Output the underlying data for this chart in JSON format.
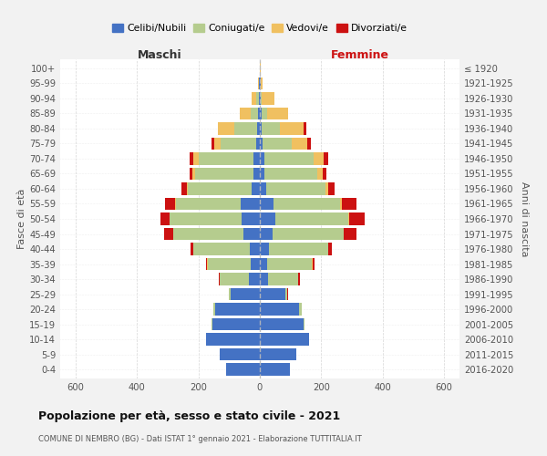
{
  "age_groups": [
    "0-4",
    "5-9",
    "10-14",
    "15-19",
    "20-24",
    "25-29",
    "30-34",
    "35-39",
    "40-44",
    "45-49",
    "50-54",
    "55-59",
    "60-64",
    "65-69",
    "70-74",
    "75-79",
    "80-84",
    "85-89",
    "90-94",
    "95-99",
    "100+"
  ],
  "birth_years": [
    "2016-2020",
    "2011-2015",
    "2006-2010",
    "2001-2005",
    "1996-2000",
    "1991-1995",
    "1986-1990",
    "1981-1985",
    "1976-1980",
    "1971-1975",
    "1966-1970",
    "1961-1965",
    "1956-1960",
    "1951-1955",
    "1946-1950",
    "1941-1945",
    "1936-1940",
    "1931-1935",
    "1926-1930",
    "1921-1925",
    "≤ 1920"
  ],
  "maschi": {
    "celibe": [
      110,
      130,
      175,
      155,
      145,
      95,
      35,
      30,
      32,
      52,
      58,
      62,
      28,
      22,
      20,
      12,
      8,
      5,
      3,
      2,
      0
    ],
    "coniugato": [
      0,
      0,
      1,
      2,
      5,
      5,
      95,
      140,
      185,
      230,
      235,
      210,
      205,
      190,
      180,
      115,
      75,
      25,
      8,
      2,
      0
    ],
    "vedovo": [
      0,
      0,
      0,
      0,
      0,
      0,
      0,
      1,
      1,
      1,
      2,
      4,
      4,
      8,
      18,
      22,
      55,
      35,
      15,
      3,
      0
    ],
    "divorziato": [
      0,
      0,
      0,
      0,
      0,
      2,
      3,
      4,
      9,
      28,
      28,
      32,
      18,
      8,
      12,
      8,
      0,
      0,
      0,
      0,
      0
    ]
  },
  "femmine": {
    "nubile": [
      98,
      118,
      160,
      142,
      128,
      82,
      28,
      25,
      30,
      42,
      50,
      45,
      20,
      16,
      14,
      8,
      6,
      5,
      2,
      2,
      0
    ],
    "coniugata": [
      0,
      0,
      1,
      2,
      8,
      8,
      98,
      145,
      192,
      230,
      238,
      215,
      195,
      170,
      160,
      95,
      58,
      18,
      5,
      0,
      0
    ],
    "vedova": [
      0,
      0,
      0,
      0,
      0,
      0,
      0,
      1,
      2,
      2,
      4,
      7,
      9,
      20,
      33,
      52,
      78,
      68,
      40,
      8,
      2
    ],
    "divorziata": [
      0,
      0,
      0,
      0,
      0,
      2,
      5,
      7,
      9,
      42,
      48,
      48,
      20,
      10,
      16,
      10,
      8,
      0,
      0,
      0,
      0
    ]
  },
  "colors": {
    "celibe": "#4472c4",
    "coniugato": "#b5cc8e",
    "vedovo": "#f0c060",
    "divorziato": "#cc1111"
  },
  "xlim": 650,
  "title": "Popolazione per età, sesso e stato civile - 2021",
  "subtitle": "COMUNE DI NEMBRO (BG) - Dati ISTAT 1° gennaio 2021 - Elaborazione TUTTITALIA.IT",
  "ylabel_left": "Fasce di età",
  "ylabel_right": "Anni di nascita",
  "xlabel_left": "Maschi",
  "xlabel_right": "Femmine",
  "bg_color": "#f2f2f2",
  "plot_bg": "#ffffff"
}
